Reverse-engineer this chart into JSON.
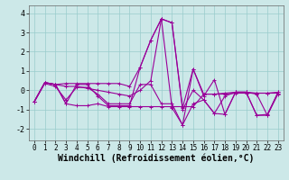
{
  "xlabel": "Windchill (Refroidissement éolien,°C)",
  "bg_color": "#cce8e8",
  "grid_color": "#99cccc",
  "line_color": "#990099",
  "marker": "+",
  "ylim": [
    -2.6,
    4.4
  ],
  "yticks": [
    -2,
    -1,
    0,
    1,
    2,
    3,
    4
  ],
  "xticks": [
    0,
    1,
    2,
    3,
    4,
    5,
    6,
    7,
    8,
    9,
    10,
    11,
    12,
    13,
    14,
    15,
    16,
    17,
    18,
    19,
    20,
    21,
    22,
    23
  ],
  "tick_fontsize": 6,
  "xlabel_fontsize": 7,
  "markersize": 3,
  "linewidth": 0.8,
  "series": [
    [
      -0.6,
      0.4,
      0.3,
      -0.7,
      0.3,
      0.3,
      -0.3,
      -0.8,
      -0.8,
      -0.8,
      1.2,
      2.6,
      3.7,
      -0.9,
      -1.8,
      1.1,
      -0.3,
      0.55,
      -1.25,
      -0.1,
      -0.1,
      -1.3,
      -1.3,
      -0.2
    ],
    [
      -0.6,
      0.4,
      0.3,
      0.35,
      0.35,
      0.35,
      0.35,
      0.35,
      0.35,
      0.2,
      1.2,
      2.6,
      3.7,
      3.5,
      -0.9,
      1.1,
      -0.2,
      -0.2,
      -0.15,
      -0.1,
      -0.1,
      -0.15,
      -0.15,
      -0.1
    ],
    [
      -0.6,
      0.4,
      0.3,
      -0.7,
      -0.8,
      -0.8,
      -0.7,
      -0.85,
      -0.85,
      -0.85,
      -0.85,
      -0.85,
      -0.85,
      -0.85,
      -0.85,
      -0.85,
      -0.2,
      -0.2,
      -0.2,
      -0.15,
      -0.15,
      -0.15,
      -0.15,
      -0.15
    ],
    [
      -0.6,
      0.4,
      0.3,
      0.2,
      0.2,
      0.1,
      0.0,
      -0.1,
      -0.2,
      -0.3,
      0.0,
      0.5,
      3.7,
      3.5,
      -1.0,
      0.0,
      -0.5,
      -1.2,
      -0.3,
      -0.1,
      -0.1,
      -0.2,
      -1.3,
      -0.1
    ],
    [
      -0.6,
      0.35,
      0.2,
      -0.5,
      0.15,
      0.15,
      -0.2,
      -0.7,
      -0.7,
      -0.7,
      0.3,
      0.3,
      -0.7,
      -0.7,
      -1.8,
      -0.7,
      -0.5,
      -1.2,
      -1.25,
      -0.1,
      -0.1,
      -1.3,
      -1.25,
      -0.15
    ]
  ]
}
